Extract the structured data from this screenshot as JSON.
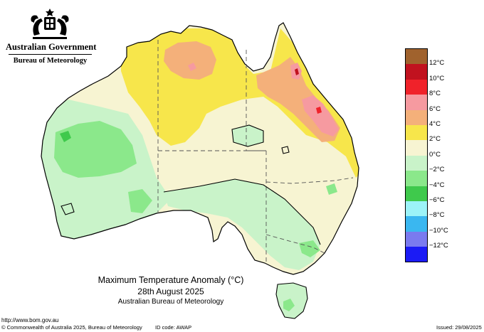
{
  "header": {
    "government": "Australian Government",
    "bureau": "Bureau of Meteorology"
  },
  "map": {
    "title": "Maximum Temperature Anomaly (°C)",
    "date": "28th August 2025",
    "source": "Australian Bureau of Meteorology"
  },
  "legend": {
    "colors": [
      "#a0622d",
      "#c1121f",
      "#f0222a",
      "#f69aa0",
      "#f4b07a",
      "#f7e64b",
      "#f7f4d2",
      "#c9f3c9",
      "#8be88b",
      "#3fc94c",
      "#9cf3f8",
      "#3ab7f0",
      "#7a7aef",
      "#1b1bf5"
    ],
    "labels": [
      "12°C",
      "10°C",
      "8°C",
      "6°C",
      "4°C",
      "2°C",
      "0°C",
      "−2°C",
      "−4°C",
      "−6°C",
      "−8°C",
      "−10°C",
      "−12°C"
    ]
  },
  "footer": {
    "url": "http://www.bom.gov.au",
    "copyright": "© Commonwealth of Australia 2025, Bureau of Meteorology",
    "id_code": "ID code: AWAP",
    "issued": "Issued: 29/08/2025"
  }
}
